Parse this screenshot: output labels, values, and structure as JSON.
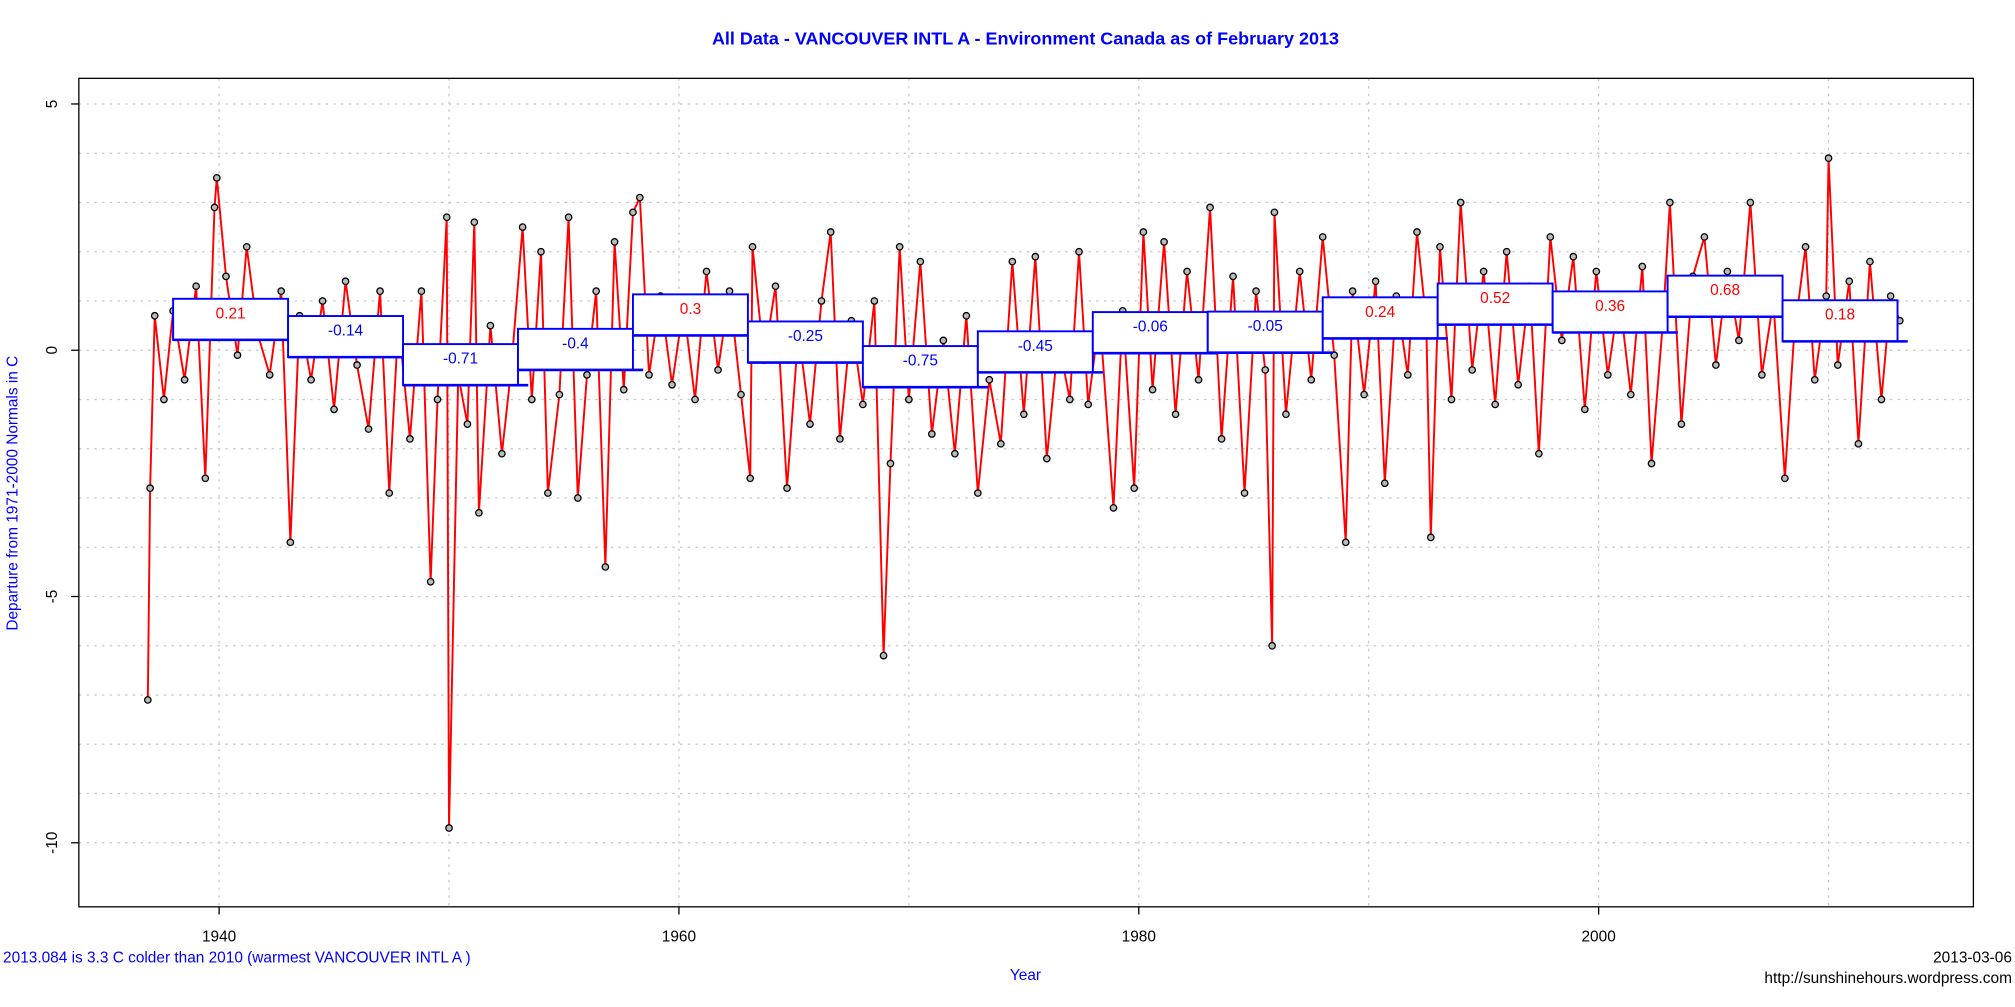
{
  "chart_data": {
    "type": "line",
    "title": "All Data - VANCOUVER INTL A - Environment Canada as of  February 2013",
    "y_label": "Departure from 1971-2000 Normals in C",
    "x_label": "Year",
    "footnote": "2013.084 is 3.3 C  colder than 2010 (warmest VANCOUVER INTL A )",
    "date": "2013-03-06",
    "source": "http://sunshinehours.wordpress.com",
    "xlim": [
      1933.9,
      2016.3
    ],
    "ylim": [
      -11.3,
      5.52
    ],
    "xticks": [
      1940,
      1960,
      1980,
      2000
    ],
    "yticks": [
      -10,
      -5,
      0,
      5
    ],
    "xgrid": [
      1940,
      1950,
      1960,
      1970,
      1980,
      1990,
      2000,
      2010
    ],
    "ygrid": [
      -10,
      -9,
      -8,
      -7,
      -6,
      -5,
      -4,
      -3,
      -2,
      -1,
      0,
      1,
      2,
      3,
      4,
      5
    ],
    "grid": true,
    "series": [
      {
        "color": "#ff0000",
        "x": [
          1936.9,
          1937.0,
          1937.2,
          1937.6,
          1938.0,
          1938.5,
          1939.0,
          1939.4,
          1939.8,
          1939.9,
          1940.3,
          1940.8,
          1941.2,
          1941.7,
          1942.2,
          1942.7,
          1943.1,
          1943.5,
          1944.0,
          1944.5,
          1945.0,
          1945.5,
          1946.0,
          1946.5,
          1947.0,
          1947.4,
          1947.8,
          1948.3,
          1948.8,
          1949.2,
          1949.5,
          1949.9,
          1950.0,
          1950.4,
          1950.8,
          1951.1,
          1951.3,
          1951.8,
          1952.3,
          1952.7,
          1953.2,
          1953.6,
          1954.0,
          1954.3,
          1954.8,
          1955.2,
          1955.6,
          1956.0,
          1956.4,
          1956.8,
          1957.2,
          1957.6,
          1958.0,
          1958.3,
          1958.7,
          1959.2,
          1959.7,
          1960.2,
          1960.7,
          1961.2,
          1961.7,
          1962.2,
          1962.7,
          1963.1,
          1963.2,
          1963.7,
          1964.2,
          1964.7,
          1965.2,
          1965.7,
          1966.2,
          1966.6,
          1967.0,
          1967.5,
          1968.0,
          1968.5,
          1968.9,
          1969.2,
          1969.6,
          1970.0,
          1970.5,
          1971.0,
          1971.5,
          1972.0,
          1972.5,
          1973.0,
          1973.5,
          1974.0,
          1974.5,
          1975.0,
          1975.5,
          1976.0,
          1976.5,
          1977.0,
          1977.4,
          1977.8,
          1978.3,
          1978.9,
          1979.3,
          1979.8,
          1980.2,
          1980.6,
          1981.1,
          1981.6,
          1982.1,
          1982.6,
          1983.1,
          1983.6,
          1984.1,
          1984.6,
          1985.1,
          1985.5,
          1985.8,
          1985.9,
          1986.4,
          1987.0,
          1987.5,
          1988.0,
          1988.5,
          1989.0,
          1989.3,
          1989.8,
          1990.3,
          1990.7,
          1991.2,
          1991.7,
          1992.1,
          1992.5,
          1992.7,
          1993.1,
          1993.6,
          1994.0,
          1994.5,
          1995.0,
          1995.5,
          1996.0,
          1996.5,
          1997.0,
          1997.4,
          1997.9,
          1998.4,
          1998.9,
          1999.4,
          1999.9,
          2000.4,
          2000.9,
          2001.4,
          2001.9,
          2002.3,
          2002.8,
          2003.1,
          2003.6,
          2004.1,
          2004.6,
          2005.1,
          2005.6,
          2006.1,
          2006.6,
          2007.1,
          2007.6,
          2008.1,
          2008.5,
          2009.0,
          2009.4,
          2009.9,
          2010.0,
          2010.4,
          2010.9,
          2011.3,
          2011.8,
          2012.3,
          2012.7,
          2013.1
        ],
        "values": [
          -7.1,
          -2.8,
          0.7,
          -1.0,
          0.8,
          -0.6,
          1.3,
          -2.6,
          2.9,
          3.5,
          1.5,
          -0.1,
          2.1,
          0.3,
          -0.5,
          1.2,
          -3.9,
          0.7,
          -0.6,
          1.0,
          -1.2,
          1.4,
          -0.3,
          -1.6,
          1.2,
          -2.9,
          0.6,
          -1.8,
          1.2,
          -4.7,
          -1.0,
          2.7,
          -9.7,
          -0.5,
          -1.5,
          2.6,
          -3.3,
          0.5,
          -2.1,
          -0.4,
          2.5,
          -1.0,
          2.0,
          -2.9,
          -0.9,
          2.7,
          -3.0,
          -0.5,
          1.2,
          -4.4,
          2.2,
          -0.8,
          2.8,
          3.1,
          -0.5,
          1.1,
          -0.7,
          0.9,
          -1.0,
          1.6,
          -0.4,
          1.2,
          -0.9,
          -2.6,
          2.1,
          -0.2,
          1.3,
          -2.8,
          0.4,
          -1.5,
          1.0,
          2.4,
          -1.8,
          0.6,
          -1.1,
          1.0,
          -6.2,
          -2.3,
          2.1,
          -1.0,
          1.8,
          -1.7,
          0.2,
          -2.1,
          0.7,
          -2.9,
          -0.6,
          -1.9,
          1.8,
          -1.3,
          1.9,
          -2.2,
          0.2,
          -1.0,
          2.0,
          -1.1,
          0.7,
          -3.2,
          0.8,
          -2.8,
          2.4,
          -0.8,
          2.2,
          -1.3,
          1.6,
          -0.6,
          2.9,
          -1.8,
          1.5,
          -2.9,
          1.2,
          -0.4,
          -6.0,
          2.8,
          -1.3,
          1.6,
          -0.6,
          2.3,
          -0.1,
          -3.9,
          1.2,
          -0.9,
          1.4,
          -2.7,
          1.1,
          -0.5,
          2.4,
          0.6,
          -3.8,
          2.1,
          -1.0,
          3.0,
          -0.4,
          1.6,
          -1.1,
          2.0,
          -0.7,
          1.3,
          -2.1,
          2.3,
          0.2,
          1.9,
          -1.2,
          1.6,
          -0.5,
          1.1,
          -0.9,
          1.7,
          -2.3,
          0.6,
          3.0,
          -1.5,
          1.5,
          2.3,
          -0.3,
          1.6,
          0.2,
          3.0,
          -0.5,
          1.0,
          -2.6,
          0.3,
          2.1,
          -0.6,
          1.1,
          3.9,
          -0.3,
          1.4,
          -1.9,
          1.8,
          -1.0,
          1.1,
          0.6
        ]
      }
    ],
    "segments": [
      {
        "start": 1938,
        "end": 1943,
        "value": 0.21
      },
      {
        "start": 1943,
        "end": 1948,
        "value": -0.14
      },
      {
        "start": 1948,
        "end": 1953,
        "value": -0.71
      },
      {
        "start": 1953,
        "end": 1958,
        "value": -0.4
      },
      {
        "start": 1958,
        "end": 1963,
        "value": 0.3
      },
      {
        "start": 1963,
        "end": 1968,
        "value": -0.25
      },
      {
        "start": 1968,
        "end": 1973,
        "value": -0.75
      },
      {
        "start": 1973,
        "end": 1978,
        "value": -0.45
      },
      {
        "start": 1978,
        "end": 1983,
        "value": -0.06
      },
      {
        "start": 1983,
        "end": 1988,
        "value": -0.05
      },
      {
        "start": 1988,
        "end": 1993,
        "value": 0.24
      },
      {
        "start": 1993,
        "end": 1998,
        "value": 0.52
      },
      {
        "start": 1998,
        "end": 2003,
        "value": 0.36
      },
      {
        "start": 2003,
        "end": 2008,
        "value": 0.68
      },
      {
        "start": 2008,
        "end": 2013,
        "value": 0.18
      }
    ]
  }
}
